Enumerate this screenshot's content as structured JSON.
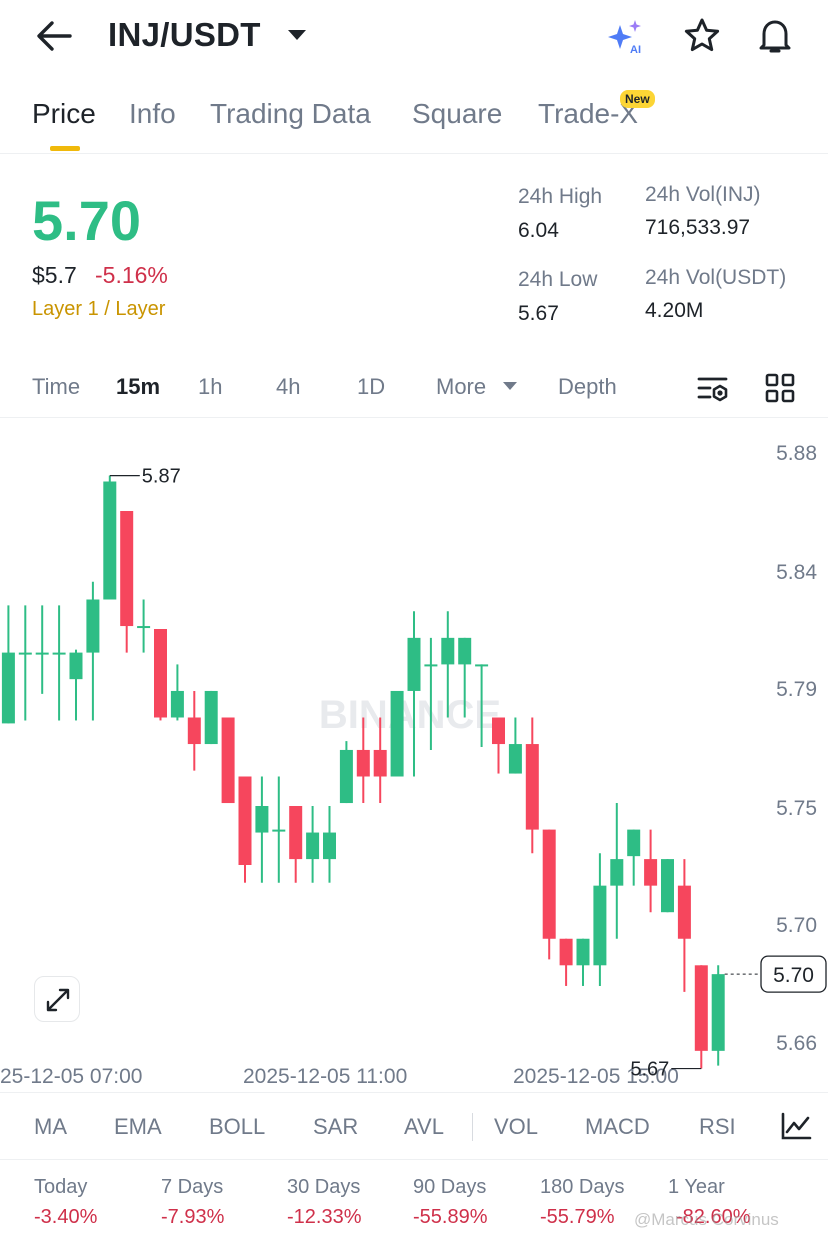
{
  "header": {
    "pair": "INJ/USDT",
    "icons": [
      "back-arrow-icon",
      "caret-down-icon",
      "ai-sparkle-icon",
      "star-icon",
      "bell-icon"
    ],
    "ai_label": "AI"
  },
  "tabs": {
    "items": [
      {
        "label": "Price",
        "active": true
      },
      {
        "label": "Info",
        "active": false
      },
      {
        "label": "Trading Data",
        "active": false
      },
      {
        "label": "Square",
        "active": false
      },
      {
        "label": "Trade-X",
        "active": false
      }
    ],
    "new_badge": "New"
  },
  "price": {
    "last": "5.70",
    "usd": "$5.7",
    "change_pct": "-5.16%",
    "category": "Layer 1 / Layer"
  },
  "stats": {
    "high_label": "24h High",
    "high_value": "6.04",
    "low_label": "24h Low",
    "low_value": "5.67",
    "vol_base_label": "24h Vol(INJ)",
    "vol_base_value": "716,533.97",
    "vol_quote_label": "24h Vol(USDT)",
    "vol_quote_value": "4.20M"
  },
  "intervals": {
    "items": [
      {
        "label": "Time",
        "active": false
      },
      {
        "label": "15m",
        "active": true
      },
      {
        "label": "1h",
        "active": false
      },
      {
        "label": "4h",
        "active": false
      },
      {
        "label": "1D",
        "active": false
      },
      {
        "label": "More",
        "active": false
      },
      {
        "label": "Depth",
        "active": false
      }
    ],
    "icons": [
      "chart-settings-icon",
      "grid-layout-icon"
    ]
  },
  "chart_data": {
    "type": "candlestick",
    "interval": "15m",
    "y_ticks": [
      "5.88",
      "5.84",
      "5.79",
      "5.75",
      "5.70",
      "5.66"
    ],
    "x_ticks": [
      "25-12-05 07:00",
      "2025-12-05 11:00",
      "2025-12-05 15:00"
    ],
    "max_label": "5.87",
    "min_label": "5.67",
    "last_price_label": "5.70",
    "watermark": "BINANCE",
    "colors": {
      "up": "#2ebd85",
      "down": "#f6465d"
    },
    "candles": [
      {
        "o": 5.815,
        "h": 5.822,
        "l": 5.779,
        "c": 5.787
      },
      {
        "o": 5.788,
        "h": 5.828,
        "l": 5.788,
        "c": 5.812
      },
      {
        "o": 5.812,
        "h": 5.828,
        "l": 5.789,
        "c": 5.812
      },
      {
        "o": 5.812,
        "h": 5.828,
        "l": 5.798,
        "c": 5.812
      },
      {
        "o": 5.812,
        "h": 5.828,
        "l": 5.789,
        "c": 5.812
      },
      {
        "o": 5.803,
        "h": 5.813,
        "l": 5.789,
        "c": 5.812
      },
      {
        "o": 5.812,
        "h": 5.836,
        "l": 5.789,
        "c": 5.83
      },
      {
        "o": 5.83,
        "h": 5.872,
        "l": 5.83,
        "c": 5.87
      },
      {
        "o": 5.86,
        "h": 5.86,
        "l": 5.812,
        "c": 5.821
      },
      {
        "o": 5.821,
        "h": 5.83,
        "l": 5.812,
        "c": 5.821
      },
      {
        "o": 5.82,
        "h": 5.82,
        "l": 5.789,
        "c": 5.79
      },
      {
        "o": 5.79,
        "h": 5.808,
        "l": 5.789,
        "c": 5.799
      },
      {
        "o": 5.79,
        "h": 5.799,
        "l": 5.772,
        "c": 5.781
      },
      {
        "o": 5.781,
        "h": 5.799,
        "l": 5.781,
        "c": 5.799
      },
      {
        "o": 5.79,
        "h": 5.79,
        "l": 5.763,
        "c": 5.761
      },
      {
        "o": 5.77,
        "h": 5.77,
        "l": 5.734,
        "c": 5.74
      },
      {
        "o": 5.751,
        "h": 5.77,
        "l": 5.734,
        "c": 5.76
      },
      {
        "o": 5.752,
        "h": 5.77,
        "l": 5.734,
        "c": 5.752
      },
      {
        "o": 5.76,
        "h": 5.76,
        "l": 5.734,
        "c": 5.742
      },
      {
        "o": 5.742,
        "h": 5.76,
        "l": 5.734,
        "c": 5.751
      },
      {
        "o": 5.742,
        "h": 5.76,
        "l": 5.734,
        "c": 5.751
      },
      {
        "o": 5.761,
        "h": 5.782,
        "l": 5.761,
        "c": 5.779
      },
      {
        "o": 5.779,
        "h": 5.79,
        "l": 5.761,
        "c": 5.77
      },
      {
        "o": 5.779,
        "h": 5.79,
        "l": 5.761,
        "c": 5.77
      },
      {
        "o": 5.77,
        "h": 5.799,
        "l": 5.77,
        "c": 5.799
      },
      {
        "o": 5.799,
        "h": 5.826,
        "l": 5.77,
        "c": 5.817
      },
      {
        "o": 5.808,
        "h": 5.817,
        "l": 5.779,
        "c": 5.808
      },
      {
        "o": 5.808,
        "h": 5.826,
        "l": 5.79,
        "c": 5.817
      },
      {
        "o": 5.808,
        "h": 5.817,
        "l": 5.79,
        "c": 5.817
      },
      {
        "o": 5.808,
        "h": 5.808,
        "l": 5.78,
        "c": 5.808
      },
      {
        "o": 5.79,
        "h": 5.79,
        "l": 5.771,
        "c": 5.781
      },
      {
        "o": 5.771,
        "h": 5.79,
        "l": 5.771,
        "c": 5.781
      },
      {
        "o": 5.781,
        "h": 5.79,
        "l": 5.744,
        "c": 5.752
      },
      {
        "o": 5.752,
        "h": 5.752,
        "l": 5.708,
        "c": 5.715
      },
      {
        "o": 5.715,
        "h": 5.715,
        "l": 5.699,
        "c": 5.706
      },
      {
        "o": 5.706,
        "h": 5.715,
        "l": 5.699,
        "c": 5.715
      },
      {
        "o": 5.706,
        "h": 5.744,
        "l": 5.699,
        "c": 5.733
      },
      {
        "o": 5.733,
        "h": 5.761,
        "l": 5.715,
        "c": 5.742
      },
      {
        "o": 5.743,
        "h": 5.752,
        "l": 5.733,
        "c": 5.752
      },
      {
        "o": 5.742,
        "h": 5.752,
        "l": 5.724,
        "c": 5.733
      },
      {
        "o": 5.724,
        "h": 5.742,
        "l": 5.724,
        "c": 5.742
      },
      {
        "o": 5.733,
        "h": 5.742,
        "l": 5.697,
        "c": 5.715
      },
      {
        "o": 5.706,
        "h": 5.706,
        "l": 5.671,
        "c": 5.677
      },
      {
        "o": 5.677,
        "h": 5.706,
        "l": 5.672,
        "c": 5.703
      }
    ]
  },
  "indicators": [
    "MA",
    "EMA",
    "BOLL",
    "SAR",
    "AVL",
    "VOL",
    "MACD",
    "RSI"
  ],
  "indicator_icons": [
    "expand-icon",
    "indicator-chart-icon"
  ],
  "performance": [
    {
      "label": "Today",
      "value": "-3.40%"
    },
    {
      "label": "7 Days",
      "value": "-7.93%"
    },
    {
      "label": "30 Days",
      "value": "-12.33%"
    },
    {
      "label": "90 Days",
      "value": "-55.89%"
    },
    {
      "label": "180 Days",
      "value": "-55.79%"
    },
    {
      "label": "1 Year",
      "value": "-82.60%"
    }
  ],
  "watermark_text": "@Marcus Corvinus"
}
